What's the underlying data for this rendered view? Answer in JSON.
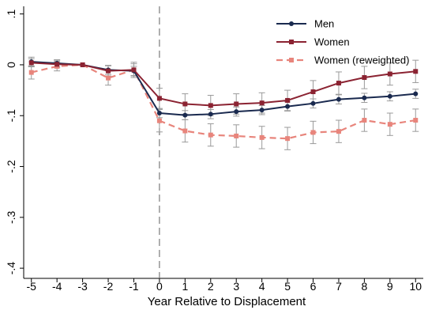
{
  "chart_data": {
    "type": "line",
    "title": "",
    "xlabel": "Year Relative to Displacement",
    "ylabel": "",
    "x": [
      -5,
      -4,
      -3,
      -2,
      -1,
      0,
      1,
      2,
      3,
      4,
      5,
      6,
      7,
      8,
      9,
      10
    ],
    "x_tick_labels": [
      "-5",
      "-4",
      "-3",
      "-2",
      "-1",
      "0",
      "1",
      "2",
      "3",
      "4",
      "5",
      "6",
      "7",
      "8",
      "9",
      "10"
    ],
    "y_ticks": [
      0.1,
      0,
      -0.1,
      -0.2,
      -0.3,
      -0.4
    ],
    "y_tick_labels": [
      ".1",
      "0",
      "-.1",
      "-.2",
      "-.3",
      "-.4"
    ],
    "xlim": [
      -5.3,
      10.3
    ],
    "ylim": [
      -0.42,
      0.115
    ],
    "reference_line_x": 0,
    "legend_position": "top-right",
    "series": [
      {
        "name": "Men",
        "color": "#1a2a4f",
        "marker": "circle",
        "dashed": false,
        "values": [
          0.006,
          0.003,
          0.0,
          -0.01,
          -0.012,
          -0.095,
          -0.099,
          -0.097,
          -0.092,
          -0.089,
          -0.082,
          -0.076,
          -0.068,
          -0.065,
          -0.062,
          -0.057
        ],
        "ci_lower": [
          -0.003,
          -0.004,
          null,
          -0.019,
          -0.021,
          -0.104,
          -0.108,
          -0.106,
          -0.101,
          -0.098,
          -0.091,
          -0.085,
          -0.077,
          -0.074,
          -0.071,
          -0.066
        ],
        "ci_upper": [
          0.015,
          0.01,
          null,
          -0.001,
          -0.003,
          -0.086,
          -0.09,
          -0.088,
          -0.083,
          -0.08,
          -0.073,
          -0.067,
          -0.059,
          -0.056,
          -0.053,
          -0.048
        ]
      },
      {
        "name": "Women",
        "color": "#8b2332",
        "marker": "square",
        "dashed": false,
        "values": [
          0.004,
          0.001,
          0.0,
          -0.012,
          -0.01,
          -0.066,
          -0.077,
          -0.08,
          -0.077,
          -0.075,
          -0.07,
          -0.053,
          -0.036,
          -0.025,
          -0.018,
          -0.013
        ],
        "ci_lower": [
          -0.004,
          -0.006,
          null,
          -0.022,
          -0.025,
          -0.086,
          -0.097,
          -0.1,
          -0.097,
          -0.095,
          -0.09,
          -0.075,
          -0.058,
          -0.047,
          -0.04,
          -0.035
        ],
        "ci_upper": [
          0.012,
          0.008,
          null,
          -0.002,
          0.005,
          -0.046,
          -0.057,
          -0.06,
          -0.057,
          -0.055,
          -0.05,
          -0.031,
          -0.014,
          -0.003,
          0.004,
          0.009
        ]
      },
      {
        "name": "Women (reweighted)",
        "color": "#e8857c",
        "marker": "square",
        "dashed": true,
        "values": [
          -0.015,
          -0.003,
          0.0,
          -0.026,
          -0.01,
          -0.11,
          -0.13,
          -0.138,
          -0.14,
          -0.143,
          -0.145,
          -0.133,
          -0.131,
          -0.109,
          -0.117,
          -0.109
        ],
        "ci_lower": [
          -0.028,
          -0.012,
          null,
          -0.04,
          -0.022,
          -0.132,
          -0.152,
          -0.16,
          -0.162,
          -0.165,
          -0.167,
          -0.155,
          -0.153,
          -0.131,
          -0.139,
          -0.131
        ],
        "ci_upper": [
          -0.002,
          0.006,
          null,
          -0.012,
          0.002,
          -0.088,
          -0.108,
          -0.116,
          -0.118,
          -0.121,
          -0.123,
          -0.111,
          -0.109,
          -0.087,
          -0.095,
          -0.087
        ]
      }
    ]
  }
}
